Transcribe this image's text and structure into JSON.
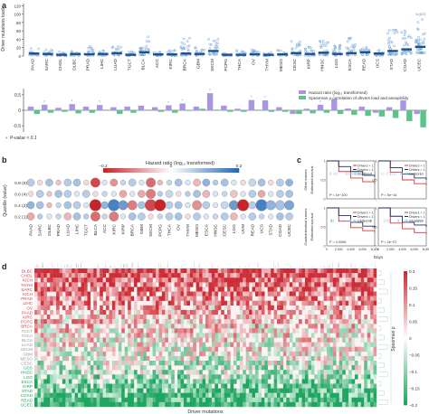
{
  "panels": {
    "a": "a",
    "b": "b",
    "c": "c",
    "d": "d"
  },
  "chart_data": [
    {
      "id": "a-top",
      "type": "scatter",
      "ylabel": "Driver mutations load",
      "yticks": [
        0,
        20,
        40,
        60,
        80,
        100,
        120
      ],
      "ylim": [
        0,
        125
      ],
      "categories": [
        "PAAD",
        "SARC",
        "CHOL",
        "DLBC",
        "PRAD",
        "LIHC",
        "LUAD",
        "TGCT",
        "BLCA",
        "ACC",
        "KIRC",
        "BRCA",
        "GBM",
        "SKCM",
        "PCPG",
        "THCA",
        "OV",
        "THYM",
        "MESO",
        "CESC",
        "KIRP",
        "HNSC",
        "LGG",
        "ESCA",
        "READ",
        "UCS",
        "STAD",
        "COAD",
        "UCEC"
      ],
      "medians": [
        6,
        5,
        3,
        5,
        4,
        5,
        7,
        3,
        9,
        4,
        4,
        6,
        5,
        12,
        3,
        3,
        4,
        3,
        4,
        7,
        5,
        8,
        5,
        7,
        9,
        6,
        12,
        16,
        22
      ],
      "maxima": [
        18,
        15,
        12,
        14,
        23,
        13,
        25,
        11,
        47,
        12,
        14,
        44,
        20,
        40,
        9,
        14,
        15,
        9,
        14,
        35,
        21,
        36,
        28,
        43,
        20,
        14,
        62,
        60,
        100
      ]
    },
    {
      "id": "a-bottom",
      "type": "bar",
      "yticks": [
        0.5,
        0,
        -0.5
      ],
      "ylim": [
        -0.7,
        0.7
      ],
      "legend": [
        "Hazard ratio (log₁₀ transformed)",
        "Spearman ρ correlation of drivers load and aneuploidy"
      ],
      "note": "P-value < 0.1",
      "series": [
        {
          "values": [
            0.12,
            0.18,
            0.08,
            0.2,
            0.12,
            0.17,
            0.1,
            0.12,
            0.15,
            0.1,
            0.16,
            0.22,
            0.12,
            0.55,
            0.15,
            0.05,
            0.33,
            0.32,
            0.1,
            -0.12,
            0.05,
            0.18,
            0.36,
            0.06,
            0.12,
            -0.08,
            0.1,
            0.32,
            -0.12
          ]
        },
        {
          "values": [
            -0.12,
            -0.08,
            -0.05,
            -0.1,
            -0.08,
            0.02,
            -0.12,
            -0.08,
            0.02,
            -0.05,
            -0.08,
            -0.02,
            0.05,
            0.02,
            -0.05,
            -0.05,
            0.02,
            -0.05,
            -0.05,
            -0.12,
            -0.1,
            -0.08,
            -0.12,
            -0.15,
            -0.18,
            -0.2,
            -0.25,
            -0.35,
            -0.55
          ]
        }
      ],
      "colors": [
        "#a996e0",
        "#5cc48a"
      ]
    },
    {
      "id": "b",
      "type": "heatmap",
      "title": "Hazard ratio (log₁₀ transformed)",
      "colorbar_ticks": [
        "−0.2",
        "0",
        "0.2"
      ],
      "ylabel": "Quantile (value)",
      "rows": [
        "0.8 (6)",
        "0.6 (4)",
        "0.4 (2)",
        "0.2 (1)"
      ],
      "columns": [
        "PAAD",
        "SARC",
        "DLBC",
        "PRAD",
        "LUAD",
        "LIHC",
        "TGCT",
        "BLCA",
        "ACC",
        "KIRC",
        "KIRP",
        "BRCA",
        "GBM",
        "SKCM",
        "PCPG",
        "THCA",
        "OV",
        "THYM",
        "MESO",
        "ESCA",
        "HNSC",
        "CESC",
        "LGG",
        "UVM",
        "READ",
        "UCS",
        "STAD",
        "COAD",
        "UCEC"
      ],
      "values": [
        [
          0.1,
          -0.05,
          0.12,
          -0.08,
          0.1,
          0.12,
          -0.05,
          -0.25,
          0.05,
          -0.15,
          0.08,
          0.1,
          0.05,
          -0.2,
          -0.1,
          0.08,
          0.12,
          0.05,
          -0.1,
          0.15,
          0.1,
          0.12,
          0.05,
          -0.05,
          0.08,
          0.12,
          -0.05,
          0.1,
          0.15
        ],
        [
          -0.05,
          0.1,
          -0.08,
          0.12,
          0.1,
          0.05,
          0.1,
          -0.05,
          0.08,
          0.05,
          -0.12,
          0.05,
          -0.12,
          -0.18,
          0.1,
          0.08,
          -0.05,
          0.1,
          0.12,
          -0.1,
          0.05,
          0.08,
          -0.08,
          0.05,
          0.1,
          -0.12,
          0.05,
          0.1,
          0.12
        ],
        [
          0.15,
          0.12,
          -0.1,
          0.08,
          0.12,
          0.1,
          0.05,
          -0.3,
          0.15,
          0.25,
          0.2,
          -0.18,
          0.12,
          -0.25,
          -0.3,
          0.1,
          0.12,
          0.05,
          -0.15,
          0.1,
          0.05,
          0.08,
          0.2,
          -0.3,
          0.1,
          0.25,
          0.15,
          0.12,
          0.18
        ],
        [
          -0.12,
          0.1,
          0.05,
          0.08,
          -0.1,
          0.12,
          0.1,
          -0.2,
          0.08,
          -0.18,
          0.05,
          0.12,
          0.1,
          -0.05,
          0.08,
          0.1,
          0.12,
          -0.05,
          0.1,
          0.05,
          0.08,
          0.1,
          -0.1,
          0.05,
          0.1,
          0.08,
          0.05,
          0.12,
          0.1
        ]
      ],
      "sizes": [
        [
          2,
          1,
          2,
          1,
          2,
          2,
          1,
          3,
          1,
          2,
          1,
          2,
          1,
          3,
          1,
          1,
          2,
          1,
          2,
          2,
          1,
          2,
          1,
          1,
          2,
          2,
          1,
          2,
          2
        ],
        [
          1,
          2,
          1,
          2,
          2,
          1,
          2,
          1,
          1,
          1,
          2,
          1,
          2,
          3,
          1,
          2,
          1,
          1,
          2,
          2,
          1,
          1,
          2,
          1,
          2,
          2,
          1,
          2,
          2
        ],
        [
          2,
          2,
          1,
          1,
          2,
          2,
          1,
          4,
          2,
          4,
          3,
          3,
          2,
          4,
          4,
          2,
          2,
          1,
          3,
          2,
          1,
          2,
          3,
          4,
          2,
          4,
          3,
          3,
          3
        ],
        [
          2,
          1,
          1,
          1,
          2,
          2,
          1,
          3,
          1,
          3,
          1,
          2,
          2,
          1,
          1,
          2,
          2,
          1,
          2,
          1,
          1,
          2,
          2,
          1,
          2,
          1,
          1,
          2,
          2
        ]
      ]
    },
    {
      "id": "c",
      "type": "line",
      "xlabel": "Days",
      "ylabel": "Estimated survival",
      "row_labels": [
        "Other tumors",
        "Gastrointestinal tumors"
      ],
      "legend": [
        "Drivers > 1",
        "Drivers < 1",
        "Censored"
      ],
      "pvalues": [
        "P < 1e−100",
        "P = 5e−16",
        "P = 0.0006",
        "P = 2e−07"
      ],
      "xticks": [
        "0",
        "2,000",
        "4,000",
        "6,000",
        "8,000"
      ],
      "yticks": [
        "0",
        "0.5",
        "1"
      ],
      "curves": [
        {
          "a": [
            1,
            0.72,
            0.55,
            0.45,
            0.4
          ],
          "b": [
            1,
            0.85,
            0.72,
            0.62,
            0.58
          ]
        },
        {
          "a": [
            1,
            0.7,
            0.5,
            0.4,
            0.35
          ],
          "b": [
            1,
            0.82,
            0.65,
            0.55,
            0.5
          ]
        },
        {
          "a": [
            1,
            0.65,
            0.48,
            0.4,
            0.35
          ],
          "b": [
            1,
            0.8,
            0.62,
            0.52,
            0.48
          ]
        },
        {
          "a": [
            1,
            0.6,
            0.45,
            0.35,
            0.3
          ],
          "b": [
            1,
            0.78,
            0.62,
            0.55,
            0.5
          ]
        }
      ]
    },
    {
      "id": "d",
      "type": "heatmap",
      "xlabel": "Driver mutations",
      "colorbar_label": "Spearman ρ",
      "colorbar_ticks": [
        "0.2",
        "0.15",
        "0.1",
        "0.05",
        "0",
        "−0.05",
        "−0.1",
        "−0.15",
        "−0.2"
      ],
      "rows": [
        "DLBC",
        "CHOL",
        "KICH",
        "THYM",
        "SARC",
        "KICH",
        "PRAD",
        "LIHC",
        "OV",
        "PAAD",
        "KIRC",
        "PCPG",
        "BRCA",
        "TGCT",
        "THCA",
        "BLCA",
        "LUAD",
        "SKCM",
        "GBM",
        "MESO",
        "CESC",
        "UCS",
        "HNSC",
        "LGG",
        "ESCA",
        "KIRP",
        "STAD",
        "COAD",
        "READ",
        "UCEC"
      ],
      "row_values": [
        0.2,
        0.18,
        0.17,
        0.15,
        0.15,
        0.12,
        0.1,
        0.1,
        0.08,
        0.08,
        0.05,
        0.05,
        0.04,
        0.03,
        0.02,
        0.01,
        0.0,
        0.0,
        -0.01,
        -0.02,
        -0.03,
        -0.05,
        -0.06,
        -0.08,
        -0.1,
        -0.12,
        -0.15,
        -0.17,
        -0.18,
        -0.2
      ]
    }
  ]
}
